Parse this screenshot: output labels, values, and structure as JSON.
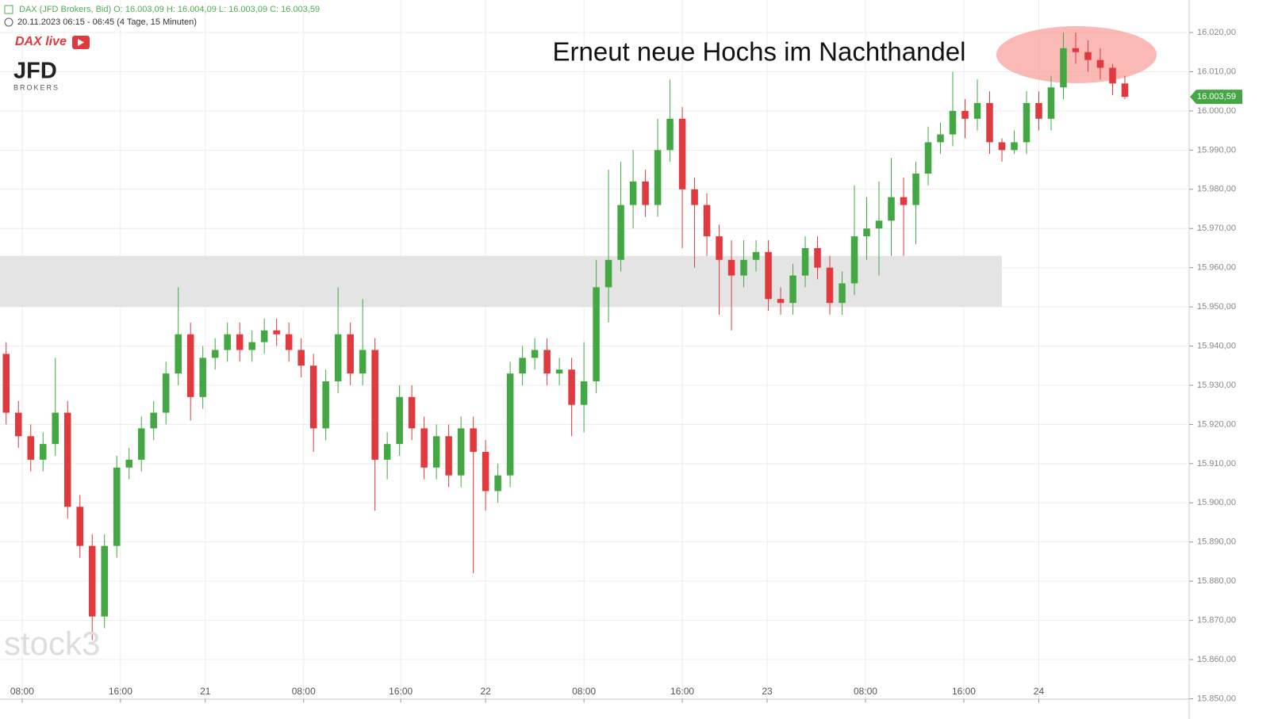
{
  "header": {
    "line1": "DAX (JFD Brokers, Bid)   O: 16.003,09   H: 16.004,09   L: 16.003,09   C: 16.003,59",
    "line2": "20.11.2023 06:15 - 06:45    (4 Tage, 15 Minuten)"
  },
  "logos": {
    "dax": "DAX live",
    "jfd": "JFD",
    "brokers": "BROKERS",
    "watermark": "stock3"
  },
  "chart_data": {
    "type": "candlestick",
    "annotation": "Erneut neue Hochs im Nachthandel",
    "up_color": "#43a843",
    "down_color": "#e0393e",
    "grid": true,
    "xlim": [
      0,
      96.6
    ],
    "ylim": [
      15850,
      16028.3
    ],
    "xticks": [
      {
        "value": 1.8,
        "label": "08:00"
      },
      {
        "value": 9.8,
        "label": "16:00"
      },
      {
        "value": 16.7,
        "label": "21"
      },
      {
        "value": 24.7,
        "label": "08:00"
      },
      {
        "value": 32.6,
        "label": "16:00"
      },
      {
        "value": 39.5,
        "label": "22"
      },
      {
        "value": 47.5,
        "label": "08:00"
      },
      {
        "value": 55.5,
        "label": "16:00"
      },
      {
        "value": 62.4,
        "label": "23"
      },
      {
        "value": 70.4,
        "label": "08:00"
      },
      {
        "value": 78.4,
        "label": "16:00"
      },
      {
        "value": 84.5,
        "label": "24"
      }
    ],
    "yticks": [
      {
        "value": 15850,
        "label": "15.850,00"
      },
      {
        "value": 15860,
        "label": "15.860,00"
      },
      {
        "value": 15870,
        "label": "15.870,00"
      },
      {
        "value": 15880,
        "label": "15.880,00"
      },
      {
        "value": 15890,
        "label": "15.890,00"
      },
      {
        "value": 15900,
        "label": "15.900,00"
      },
      {
        "value": 15910,
        "label": "15.910,00"
      },
      {
        "value": 15920,
        "label": "15.920,00"
      },
      {
        "value": 15930,
        "label": "15.930,00"
      },
      {
        "value": 15940,
        "label": "15.940,00"
      },
      {
        "value": 15950,
        "label": "15.950,00"
      },
      {
        "value": 15960,
        "label": "15.960,00"
      },
      {
        "value": 15970,
        "label": "15.970,00"
      },
      {
        "value": 15980,
        "label": "15.980,00"
      },
      {
        "value": 15990,
        "label": "15.990,00"
      },
      {
        "value": 16000,
        "label": "16.000,00"
      },
      {
        "value": 16010,
        "label": "16.010,00"
      },
      {
        "value": 16020,
        "label": "16.020,00"
      }
    ],
    "zone": {
      "x": [
        0,
        81.5
      ],
      "y": [
        15950,
        15963
      ]
    },
    "last_price": {
      "value": 16003.59,
      "label": "16.003,59"
    },
    "x": [
      0.5,
      1.5,
      2.5,
      3.5,
      4.5,
      5.5,
      6.5,
      7.5,
      8.5,
      9.5,
      10.5,
      11.5,
      12.5,
      13.5,
      14.5,
      15.5,
      16.5,
      17.5,
      18.5,
      19.5,
      20.5,
      21.5,
      22.5,
      23.5,
      24.5,
      25.5,
      26.5,
      27.5,
      28.5,
      29.5,
      30.5,
      31.5,
      32.5,
      33.5,
      34.5,
      35.5,
      36.5,
      37.5,
      38.5,
      39.5,
      40.5,
      41.5,
      42.5,
      43.5,
      44.5,
      45.5,
      46.5,
      47.5,
      48.5,
      49.5,
      50.5,
      51.5,
      52.5,
      53.5,
      54.5,
      55.5,
      56.5,
      57.5,
      58.5,
      59.5,
      60.5,
      61.5,
      62.5,
      63.5,
      64.5,
      65.5,
      66.5,
      67.5,
      68.5,
      69.5,
      70.5,
      71.5,
      72.5,
      73.5,
      74.5,
      75.5,
      76.5,
      77.5,
      78.5,
      79.5,
      80.5,
      81.5,
      82.5,
      83.5,
      84.5,
      85.5,
      86.5,
      87.5,
      88.5,
      89.5,
      90.5,
      91.5
    ],
    "open": [
      15938,
      15923,
      15917,
      15911,
      15915,
      15923,
      15899,
      15889,
      15871,
      15889,
      15909,
      15911,
      15919,
      15923,
      15933,
      15943,
      15927,
      15937,
      15939,
      15943,
      15939,
      15941,
      15944,
      15943,
      15939,
      15935,
      15919,
      15931,
      15943,
      15933,
      15939,
      15911,
      15915,
      15927,
      15919,
      15909,
      15917,
      15907,
      15919,
      15913,
      15903,
      15907,
      15933,
      15937,
      15939,
      15933,
      15934,
      15925,
      15931,
      15955,
      15962,
      15976,
      15982,
      15976,
      15990,
      15998,
      15980,
      15976,
      15968,
      15962,
      15958,
      15962,
      15964,
      15952,
      15951,
      15958,
      15965,
      15960,
      15951,
      15956,
      15968,
      15970,
      15972,
      15978,
      15976,
      15984,
      15992,
      15994,
      16000,
      15998,
      16002,
      15992,
      15990,
      15992,
      16002,
      15998,
      16006,
      16016,
      16015,
      16013,
      16011,
      16007
    ],
    "high": [
      15941,
      15926,
      15920,
      15918,
      15937,
      15926,
      15902,
      15892,
      15892,
      15912,
      15914,
      15922,
      15926,
      15936,
      15955,
      15946,
      15940,
      15942,
      15946,
      15946,
      15944,
      15947,
      15947,
      15946,
      15942,
      15938,
      15934,
      15955,
      15946,
      15952,
      15942,
      15918,
      15930,
      15930,
      15922,
      15920,
      15920,
      15922,
      15922,
      15916,
      15910,
      15936,
      15940,
      15942,
      15942,
      15937,
      15937,
      15941,
      15962,
      15985,
      15987,
      15990,
      15985,
      15998,
      16008,
      16001,
      15983,
      15979,
      15971,
      15967,
      15967,
      15967,
      15967,
      15955,
      15961,
      15968,
      15968,
      15963,
      15959,
      15981,
      15978,
      15982,
      15988,
      15983,
      15987,
      15996,
      15997,
      16010,
      16003,
      16008,
      16005,
      15993,
      15995,
      16005,
      16005,
      16009,
      16020,
      16020,
      16018,
      16016,
      16012,
      16009
    ],
    "low": [
      15920,
      15914,
      15908,
      15908,
      15912,
      15896,
      15886,
      15865,
      15868,
      15886,
      15906,
      15908,
      15916,
      15920,
      15930,
      15921,
      15924,
      15934,
      15936,
      15936,
      15936,
      15938,
      15940,
      15936,
      15932,
      15913,
      15916,
      15928,
      15930,
      15930,
      15898,
      15906,
      15912,
      15916,
      15906,
      15906,
      15904,
      15904,
      15882,
      15898,
      15900,
      15904,
      15930,
      15934,
      15930,
      15930,
      15917,
      15918,
      15928,
      15946,
      15959,
      15970,
      15973,
      15973,
      15987,
      15965,
      15960,
      15963,
      15948,
      15944,
      15955,
      15959,
      15949,
      15948,
      15948,
      15955,
      15957,
      15948,
      15948,
      15953,
      15962,
      15958,
      15963,
      15963,
      15966,
      15981,
      15989,
      15991,
      15993,
      15995,
      15989,
      15987,
      15989,
      15989,
      15995,
      15995,
      16003,
      16012,
      16010,
      16008,
      16004,
      16003
    ],
    "close": [
      15923,
      15917,
      15911,
      15915,
      15923,
      15899,
      15889,
      15871,
      15889,
      15909,
      15911,
      15919,
      15923,
      15933,
      15943,
      15927,
      15937,
      15939,
      15943,
      15939,
      15941,
      15944,
      15943,
      15939,
      15935,
      15919,
      15931,
      15943,
      15933,
      15939,
      15911,
      15915,
      15927,
      15919,
      15909,
      15917,
      15907,
      15919,
      15913,
      15903,
      15907,
      15933,
      15937,
      15939,
      15933,
      15934,
      15925,
      15931,
      15955,
      15962,
      15976,
      15982,
      15976,
      15990,
      15998,
      15980,
      15976,
      15968,
      15962,
      15958,
      15962,
      15964,
      15952,
      15951,
      15958,
      15965,
      15960,
      15951,
      15956,
      15968,
      15970,
      15972,
      15978,
      15976,
      15984,
      15992,
      15994,
      16000,
      15998,
      16002,
      15992,
      15990,
      15992,
      16002,
      15998,
      16006,
      16016,
      16015,
      16013,
      16011,
      16007,
      16003.59
    ]
  }
}
